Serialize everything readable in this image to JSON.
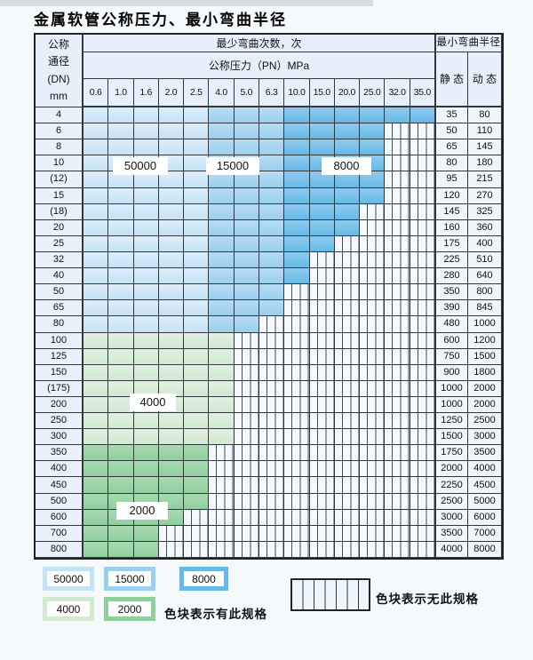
{
  "title": "金属软管公称压力、最小弯曲半径",
  "table": {
    "header": {
      "dn_lines": [
        "公称",
        "通径",
        "(DN)",
        "mm"
      ],
      "cycles_label": "最少弯曲次数，次",
      "radius_label": "最小弯曲半径",
      "pressure_label": "公称压力（PN）MPa",
      "static_label": "静 态",
      "dynamic_label": "动 态",
      "pressures": [
        "0.6",
        "1.0",
        "1.6",
        "2.0",
        "2.5",
        "4.0",
        "5.0",
        "6.3",
        "10.0",
        "15.0",
        "20.0",
        "25.0",
        "32.0",
        "35.0"
      ]
    },
    "cell_legend_key": {
      "L": "50000",
      "M": "15000",
      "D": "8000",
      "G": "4000",
      "g": "2000",
      "X": "no-spec"
    },
    "rows": [
      {
        "dn": "4",
        "cells": "LLLLLMMMDDDDDD",
        "static": "35",
        "dynamic": "80"
      },
      {
        "dn": "6",
        "cells": "LLLLLMMMDDDDXX",
        "static": "50",
        "dynamic": "110"
      },
      {
        "dn": "8",
        "cells": "LLLLLMMMDDDDXX",
        "static": "65",
        "dynamic": "145"
      },
      {
        "dn": "10",
        "cells": "LLLLLMMMDDDDXX",
        "static": "80",
        "dynamic": "180"
      },
      {
        "dn": "(12)",
        "cells": "LLLLLMMMDDDDXX",
        "static": "95",
        "dynamic": "215"
      },
      {
        "dn": "15",
        "cells": "LLLLLMMMDDDDXX",
        "static": "120",
        "dynamic": "270"
      },
      {
        "dn": "(18)",
        "cells": "LLLLLMMMDDDXXX",
        "static": "145",
        "dynamic": "325"
      },
      {
        "dn": "20",
        "cells": "LLLLLMMMDDDXXX",
        "static": "160",
        "dynamic": "360"
      },
      {
        "dn": "25",
        "cells": "LLLLLMMMDDXXXX",
        "static": "175",
        "dynamic": "400"
      },
      {
        "dn": "32",
        "cells": "LLLLLMMMDXXXXX",
        "static": "225",
        "dynamic": "510"
      },
      {
        "dn": "40",
        "cells": "LLLLLMMMDXXXXX",
        "static": "280",
        "dynamic": "640"
      },
      {
        "dn": "50",
        "cells": "LLLLLMMMXXXXXX",
        "static": "350",
        "dynamic": "800"
      },
      {
        "dn": "65",
        "cells": "LLLLLMMMXXXXXX",
        "static": "390",
        "dynamic": "845"
      },
      {
        "dn": "80",
        "cells": "LLLLLMMXXXXXXX",
        "static": "480",
        "dynamic": "1000"
      },
      {
        "dn": "100",
        "cells": "GGGGGGXXXXXXXX",
        "static": "600",
        "dynamic": "1200"
      },
      {
        "dn": "125",
        "cells": "GGGGGGXXXXXXXX",
        "static": "750",
        "dynamic": "1500"
      },
      {
        "dn": "150",
        "cells": "GGGGGGXXXXXXXX",
        "static": "900",
        "dynamic": "1800"
      },
      {
        "dn": "(175)",
        "cells": "GGGGGGXXXXXXXX",
        "static": "1000",
        "dynamic": "2000"
      },
      {
        "dn": "200",
        "cells": "GGGGGGXXXXXXXX",
        "static": "1000",
        "dynamic": "2000"
      },
      {
        "dn": "250",
        "cells": "GGGGGGXXXXXXXX",
        "static": "1250",
        "dynamic": "2500"
      },
      {
        "dn": "300",
        "cells": "GGGGGGXXXXXXXX",
        "static": "1500",
        "dynamic": "3000"
      },
      {
        "dn": "350",
        "cells": "gggggXXXXXXXXX",
        "static": "1750",
        "dynamic": "3500"
      },
      {
        "dn": "400",
        "cells": "gggggXXXXXXXXX",
        "static": "2000",
        "dynamic": "4000"
      },
      {
        "dn": "450",
        "cells": "gggggXXXXXXXXX",
        "static": "2250",
        "dynamic": "4500"
      },
      {
        "dn": "500",
        "cells": "gggggXXXXXXXXX",
        "static": "2500",
        "dynamic": "5000"
      },
      {
        "dn": "600",
        "cells": "ggggXXXXXXXXXX",
        "static": "3000",
        "dynamic": "6000"
      },
      {
        "dn": "700",
        "cells": "gggXXXXXXXXXXX",
        "static": "3500",
        "dynamic": "7000"
      },
      {
        "dn": "800",
        "cells": "gggXXXXXXXXXXX",
        "static": "4000",
        "dynamic": "8000"
      }
    ],
    "overlays": {
      "b50000": "50000",
      "b15000": "15000",
      "b8000": "8000",
      "b4000": "4000",
      "b2000": "2000"
    }
  },
  "legend": {
    "swatches": [
      {
        "value": "50000"
      },
      {
        "value": "15000"
      },
      {
        "value": "8000"
      },
      {
        "value": "4000"
      },
      {
        "value": "2000"
      }
    ],
    "has_spec_text": "色块表示有此规格",
    "no_spec_text": "色块表示无此规格"
  },
  "colors": {
    "cycles_50000": "#c6e2f5",
    "cycles_15000": "#9bcfee",
    "cycles_8000": "#67b9e6",
    "cycles_4000": "#d2e9d2",
    "cycles_2000": "#8fcf9d",
    "no_spec_bg": "#f4f9fd",
    "header_bg": "#e7f0fa",
    "grid_line": "#32373c"
  }
}
